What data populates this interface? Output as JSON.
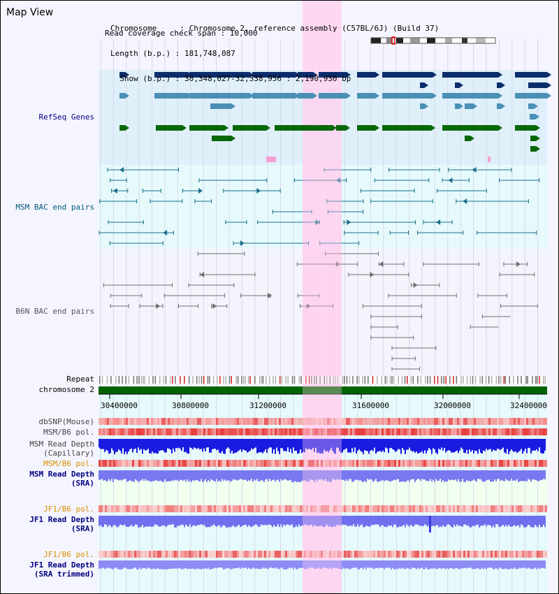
{
  "panel": {
    "title": "Map View"
  },
  "header": {
    "lines": [
      "Chromosome     : Chromosome 2, reference assembly (C57BL/6J) (Build 37)",
      "Length (b.p.) : 181,748,087",
      "  Show (b.p.) : 30,348,027-32,538,956 : 2,190,930 bp",
      "Read coverage check span : 10,000"
    ]
  },
  "tracks": {
    "refseq": "RefSeq Genes",
    "msm_bac": "MSM BAC end pairs",
    "b6n_bac": "B6N BAC end pairs",
    "repeat": "Repeat",
    "chromosome": "chromosome 2",
    "dbsnp": "dbSNP(Mouse)",
    "msm_pol1": "MSM/B6 pol.",
    "msm_depth_cap_1": "MSM Read Depth",
    "msm_depth_cap_2": "(Capillary)",
    "msm_pol2": "MSM/B6 pol.",
    "msm_depth_sra_1": "MSM Read Depth",
    "msm_depth_sra_2": "(SRA)",
    "jf1_pol1": "JF1/B6 pol.",
    "jf1_depth_1": "JF1 Read Depth",
    "jf1_depth_2": "(SRA)",
    "jf1_pol2": "JF1/B6 pol.",
    "jf1_trim_1": "JF1 Read Depth",
    "jf1_trim_2": "(SRA trimmed)"
  },
  "axis": {
    "ticks": [
      "30400000",
      "30800000",
      "31200000",
      "31600000",
      "32000000",
      "32400000"
    ]
  },
  "colors": {
    "refseq_dark": "#0b2d6b",
    "refseq_mid": "#4a8fb5",
    "refseq_green": "#086808",
    "bac_msm": "#1a6e8a",
    "bac_b6n": "#707070",
    "chromosome": "#006400",
    "highlight": "#ffd2f0",
    "label_dark": "#000080",
    "label_gold": "#d89000"
  }
}
